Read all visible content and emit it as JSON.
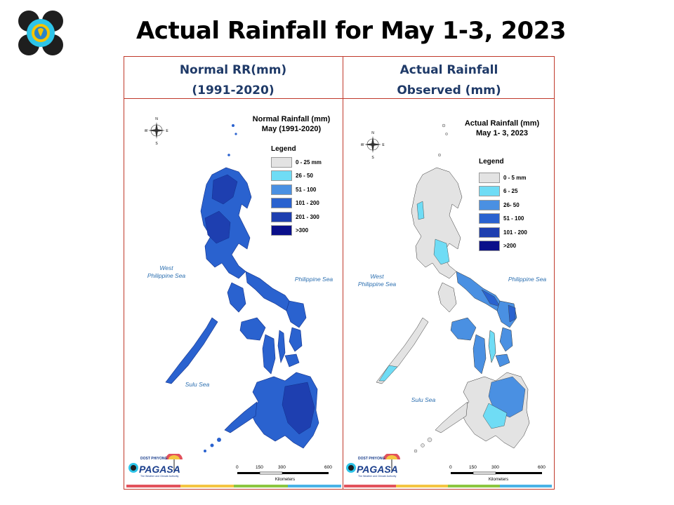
{
  "slide": {
    "title": "Actual Rainfall for May 1-3, 2023"
  },
  "panels": {
    "left": {
      "header_line1": "Normal RR(mm)",
      "header_line2": "(1991-2020)",
      "map_title_line1": "Normal Rainfall (mm)",
      "map_title_line2": "May (1991-2020)",
      "legend_title": "Legend",
      "legend": [
        {
          "label": "0 - 25 mm",
          "color": "#e3e3e3"
        },
        {
          "label": "26 - 50",
          "color": "#6fdcf5"
        },
        {
          "label": "51 - 100",
          "color": "#4a90e2"
        },
        {
          "label": "101 - 200",
          "color": "#2a62cf"
        },
        {
          "label": "201 - 300",
          "color": "#1e3fb0"
        },
        {
          "label": ">300",
          "color": "#0a0f8a"
        }
      ]
    },
    "right": {
      "header_line1": "Actual Rainfall",
      "header_line2": "Observed  (mm)",
      "map_title_line1": "Actual Rainfall (mm)",
      "map_title_line2": "May 1- 3, 2023",
      "legend_title": "Legend",
      "legend": [
        {
          "label": "0 - 5 mm",
          "color": "#e3e3e3"
        },
        {
          "label": "6 - 25",
          "color": "#6fdcf5"
        },
        {
          "label": "26- 50",
          "color": "#4a90e2"
        },
        {
          "label": "51 - 100",
          "color": "#2a62cf"
        },
        {
          "label": "101 - 200",
          "color": "#1e3fb0"
        },
        {
          "label": ">200",
          "color": "#0a0f8a"
        }
      ]
    }
  },
  "map_labels": {
    "west_sea_line1": "West",
    "west_sea_line2": "Philippine Sea",
    "philippine_sea": "Philippine Sea",
    "sulu_sea": "Sulu Sea",
    "compass_n": "N",
    "compass_s": "S",
    "compass_e": "E",
    "compass_w": "W"
  },
  "scale_bar": {
    "ticks": [
      "0",
      "150",
      "300",
      "600"
    ],
    "unit": "Kilometers"
  },
  "branding": {
    "pagasa_top": "DOST  PHIYONG",
    "pagasa_name": "PAGASA",
    "pagasa_tagline": "The Weather and Climate Authority"
  },
  "colors": {
    "frame": "#c0392b",
    "header_text": "#1f3a68",
    "sea_label": "#2c6fb0",
    "strip": [
      "#e2525c",
      "#f4c542",
      "#8cc63f",
      "#4ab3e6"
    ]
  }
}
